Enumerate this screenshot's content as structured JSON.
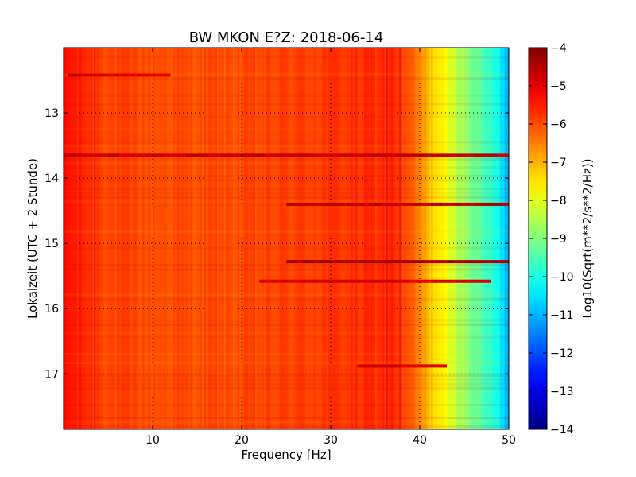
{
  "chart_data": {
    "type": "heatmap",
    "title": "BW MKON E?Z: 2018-06-14",
    "xlabel": "Frequency [Hz]",
    "ylabel": "Lokalzeit (UTC + 2 Stunde)",
    "xlim": [
      0,
      50
    ],
    "ylim": [
      17.85,
      12.0
    ],
    "x_ticks": [
      10,
      20,
      30,
      40,
      50
    ],
    "x_tick_labels": [
      "10",
      "20",
      "30",
      "40",
      "50"
    ],
    "y_ticks": [
      13,
      14,
      15,
      16,
      17
    ],
    "y_tick_labels": [
      "13",
      "14",
      "15",
      "16",
      "17"
    ],
    "grid": true,
    "colormap": "jet",
    "colorbar": {
      "label": "Log10(Sqrt(m**2/s**2/Hz))",
      "range": [
        -14,
        -4
      ],
      "ticks": [
        -4,
        -5,
        -6,
        -7,
        -8,
        -9,
        -10,
        -11,
        -12,
        -13,
        -14
      ],
      "tick_labels": [
        "−4",
        "−5",
        "−6",
        "−7",
        "−8",
        "−9",
        "−10",
        "−11",
        "−12",
        "−13",
        "−14"
      ]
    },
    "spectrum_profile": {
      "frequency_hz": [
        0,
        2,
        5,
        10,
        20,
        30,
        35,
        37,
        38,
        39,
        40,
        41,
        42,
        43,
        44,
        45,
        46,
        47,
        48,
        49,
        49.5,
        50
      ],
      "level": [
        -5.4,
        -5.6,
        -5.9,
        -6.0,
        -6.0,
        -5.8,
        -5.7,
        -5.6,
        -5.9,
        -6.2,
        -6.6,
        -7.1,
        -7.5,
        -7.9,
        -8.3,
        -8.7,
        -9.1,
        -9.5,
        -9.8,
        -10.3,
        -10.7,
        -11.0
      ]
    },
    "event_bands": [
      {
        "time": 12.42,
        "f_start": 0.5,
        "f_end": 12,
        "level": -5.0
      },
      {
        "time": 13.65,
        "f_start": 0,
        "f_end": 50,
        "level": -4.7
      },
      {
        "time": 14.4,
        "f_start": 25,
        "f_end": 50,
        "level": -4.6
      },
      {
        "time": 15.28,
        "f_start": 25,
        "f_end": 50,
        "level": -4.4
      },
      {
        "time": 15.58,
        "f_start": 22,
        "f_end": 48,
        "level": -5.0
      },
      {
        "time": 16.88,
        "f_start": 33,
        "f_end": 43,
        "level": -5.0
      }
    ],
    "vertical_lines": [
      {
        "frequency_hz": 3.5,
        "level": -5.0
      },
      {
        "frequency_hz": 36.3,
        "level": -5.0
      },
      {
        "frequency_hz": 37.8,
        "level": -4.9
      }
    ]
  }
}
